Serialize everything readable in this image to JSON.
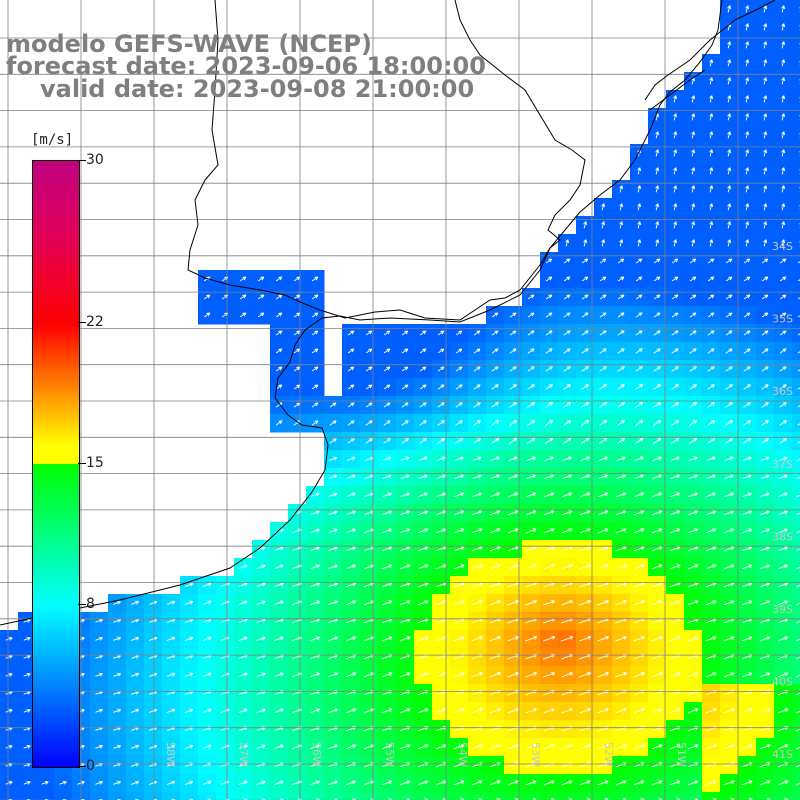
{
  "title": {
    "line1": "modelo GEFS-WAVE (NCEP)",
    "line2": "forecast date: 2023-09-06 18:00:00",
    "line3": "valid date: 2023-09-08 21:00:00"
  },
  "colorbar": {
    "units": "[m/s]",
    "min": 0,
    "max": 30,
    "ticks": [
      {
        "value": 30,
        "label": "30"
      },
      {
        "value": 22,
        "label": "22"
      },
      {
        "value": 15,
        "label": "15"
      },
      {
        "value": 8,
        "label": "8"
      },
      {
        "value": 0,
        "label": "0"
      }
    ]
  },
  "map": {
    "lat_labels": [
      "34S",
      "35S",
      "36S",
      "37S",
      "38S",
      "39S",
      "40S",
      "41S"
    ],
    "lon_labels": [
      "58W",
      "57W",
      "56W",
      "55W",
      "54W",
      "53W",
      "52W",
      "51W"
    ],
    "colors": {
      "land": "#ffffff",
      "coast": "#000000",
      "grid": "#808080",
      "arrow": "#ffffff",
      "label": "#c8c8c8"
    }
  }
}
